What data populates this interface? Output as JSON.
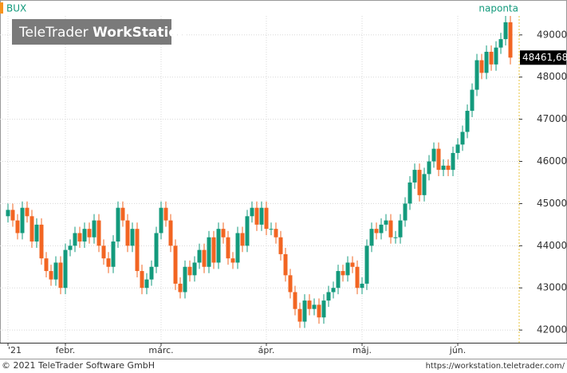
{
  "header": {
    "symbol": "BUX",
    "interval": "naponta",
    "watermark_light": "TeleTrader",
    "watermark_bold": "WorkStation"
  },
  "chart_data": {
    "type": "candlestick",
    "open": [
      44700,
      44850,
      44600,
      44300,
      44900,
      44700,
      44100,
      44500,
      43700,
      43400,
      43200,
      43600,
      43000,
      43900,
      44000,
      44300,
      44100,
      44400,
      44200,
      44600,
      44000,
      43700,
      43500,
      44100,
      44900,
      44600,
      44000,
      44400,
      43400,
      43000,
      43200,
      43500,
      44300,
      44900,
      44600,
      44000,
      43100,
      42900,
      43500,
      43300,
      43600,
      43900,
      43500,
      44200,
      43600,
      44400,
      44200,
      43700,
      43600,
      44300,
      44000,
      44700,
      44900,
      44500,
      44900,
      44400,
      44400,
      44200,
      43800,
      43300,
      42900,
      42500,
      42200,
      42700,
      42500,
      42600,
      42300,
      42700,
      42900,
      43000,
      43400,
      43300,
      43600,
      43500,
      43000,
      43100,
      44000,
      44400,
      44300,
      44500,
      44600,
      44200,
      44200,
      44600,
      45000,
      45500,
      45800,
      45200,
      45700,
      46000,
      46300,
      45800,
      45900,
      45800,
      46200,
      46400,
      46700,
      47200,
      47700,
      48400,
      48100,
      48600,
      48300,
      48700,
      48900,
      49300
    ],
    "high": [
      45000,
      45000,
      44750,
      45050,
      45050,
      44850,
      44650,
      44650,
      43850,
      43550,
      43750,
      43750,
      44050,
      44150,
      44450,
      44450,
      44550,
      44550,
      44750,
      44750,
      44150,
      43850,
      44250,
      45050,
      45050,
      44750,
      44550,
      44550,
      43550,
      43350,
      43650,
      44450,
      45050,
      45050,
      44750,
      44150,
      43250,
      43650,
      43650,
      43750,
      44050,
      44050,
      44350,
      44350,
      44550,
      44550,
      44350,
      43850,
      44450,
      44450,
      44850,
      45050,
      45050,
      45050,
      45050,
      44550,
      44550,
      44350,
      43950,
      43450,
      43050,
      42650,
      42850,
      42850,
      42750,
      42750,
      42850,
      43050,
      43150,
      43550,
      43550,
      43750,
      43750,
      43650,
      43250,
      44150,
      44550,
      44550,
      44650,
      44750,
      44750,
      44350,
      44750,
      45150,
      45650,
      45950,
      45950,
      45850,
      46150,
      46450,
      46450,
      46050,
      46050,
      46350,
      46550,
      46850,
      47350,
      47850,
      48550,
      48550,
      48750,
      48750,
      48850,
      49050,
      49450,
      49450
    ],
    "low": [
      44550,
      44450,
      44150,
      44150,
      44550,
      43950,
      43950,
      43550,
      43250,
      43050,
      43050,
      42850,
      42850,
      43750,
      43850,
      43950,
      43950,
      44050,
      44050,
      43850,
      43550,
      43350,
      43350,
      43950,
      44450,
      43850,
      43850,
      43250,
      42850,
      42850,
      43050,
      43350,
      44150,
      44450,
      43850,
      42950,
      42750,
      42750,
      43150,
      43150,
      43450,
      43350,
      43350,
      43450,
      43450,
      44050,
      43550,
      43450,
      43450,
      43850,
      43850,
      44550,
      44350,
      44350,
      44250,
      44250,
      44050,
      43650,
      43150,
      42750,
      42350,
      42050,
      42050,
      42350,
      42350,
      42150,
      42150,
      42550,
      42750,
      42850,
      43150,
      43150,
      43350,
      42850,
      42850,
      42950,
      43850,
      44150,
      44150,
      44350,
      44050,
      44050,
      44050,
      44450,
      44850,
      45350,
      45050,
      45050,
      45550,
      45850,
      45650,
      45650,
      45650,
      45650,
      46050,
      46250,
      46550,
      47050,
      47550,
      47950,
      47950,
      48150,
      48150,
      48550,
      48750,
      48300
    ],
    "close": [
      44850,
      44600,
      44300,
      44900,
      44700,
      44100,
      44500,
      43700,
      43400,
      43200,
      43600,
      43000,
      43900,
      44000,
      44300,
      44100,
      44400,
      44200,
      44600,
      44000,
      43700,
      43500,
      44100,
      44900,
      44600,
      44000,
      44400,
      43400,
      43000,
      43200,
      43500,
      44300,
      44900,
      44600,
      44000,
      43100,
      42900,
      43500,
      43300,
      43600,
      43900,
      43500,
      44200,
      43600,
      44400,
      44200,
      43700,
      43600,
      44300,
      44000,
      44700,
      44900,
      44500,
      44900,
      44400,
      44400,
      44200,
      43800,
      43300,
      42900,
      42500,
      42200,
      42700,
      42500,
      42600,
      42300,
      42700,
      42900,
      43000,
      43400,
      43300,
      43600,
      43500,
      43000,
      43100,
      44000,
      44400,
      44300,
      44500,
      44600,
      44200,
      44200,
      44600,
      45000,
      45500,
      45800,
      45200,
      45700,
      46000,
      46300,
      45800,
      45900,
      45800,
      46200,
      46400,
      46700,
      47200,
      47700,
      48400,
      48100,
      48600,
      48300,
      48700,
      48900,
      49300,
      48461.68
    ],
    "last_label": "48461,68",
    "up_color": "#139a7c",
    "down_color": "#f26522",
    "ylim": [
      41700,
      49450
    ],
    "yticks": [
      42000,
      43000,
      44000,
      45000,
      46000,
      47000,
      48000,
      49000
    ],
    "xlim": [
      -1.667,
      106.83
    ],
    "xticks": [
      {
        "value": 0,
        "label": "'21"
      },
      {
        "value": 12,
        "label": "febr."
      },
      {
        "value": 32,
        "label": "márc."
      },
      {
        "value": 54,
        "label": "ápr."
      },
      {
        "value": 74,
        "label": "máj."
      },
      {
        "value": 94,
        "label": "jún."
      }
    ],
    "grid": true
  },
  "footer": {
    "copyright": "© 2021 TeleTrader Software GmbH",
    "url": "https://workstation.teletrader.com/"
  }
}
